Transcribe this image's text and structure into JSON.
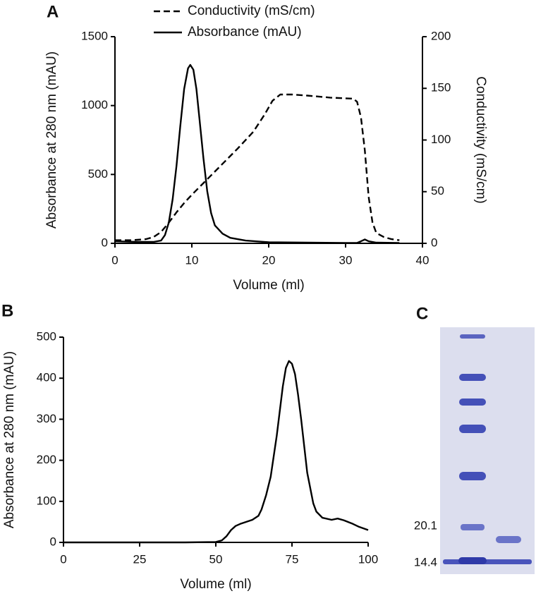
{
  "chart_data": [
    {
      "type": "line",
      "panel_label": "A",
      "xlabel": "Volume (ml)",
      "ylabel": "Absorbance at 280 nm (mAU)",
      "y2label": "Conductivity (mS/cm)",
      "xlim": [
        0,
        40
      ],
      "xticks": [
        0,
        10,
        20,
        30,
        40
      ],
      "ylim": [
        0,
        1500
      ],
      "yticks": [
        0,
        500,
        1000,
        1500
      ],
      "y2lim": [
        0,
        200
      ],
      "y2ticks": [
        0,
        50,
        100,
        150,
        200
      ],
      "legend": "top",
      "series": [
        {
          "name": "Conductivity (mS/cm)",
          "color": "#000000",
          "dash": "dashed",
          "axis": "y2",
          "x": [
            0,
            2,
            4,
            5,
            6,
            7,
            8,
            9,
            10,
            12,
            14,
            16,
            18,
            19.5,
            20.5,
            21.5,
            23,
            25,
            28,
            31,
            31.5,
            32,
            32.5,
            33,
            33.5,
            34,
            35,
            36,
            37
          ],
          "values": [
            3,
            3,
            4,
            6,
            11,
            20,
            30,
            39,
            47,
            62,
            77,
            92,
            108,
            125,
            138,
            144,
            144,
            143,
            141,
            140,
            137,
            122,
            90,
            45,
            20,
            10,
            6,
            4,
            3
          ]
        },
        {
          "name": "Absorbance (mAU)",
          "color": "#000000",
          "dash": "solid",
          "x": [
            0,
            2,
            4,
            5,
            6,
            6.5,
            7,
            7.5,
            8,
            8.5,
            9,
            9.5,
            9.8,
            10.2,
            10.6,
            11,
            11.5,
            12,
            12.5,
            13,
            14,
            15,
            17,
            20,
            25,
            30,
            31.5,
            32,
            32.5,
            33,
            34,
            37
          ],
          "values": [
            15,
            12,
            10,
            10,
            20,
            60,
            150,
            320,
            560,
            850,
            1120,
            1270,
            1295,
            1260,
            1120,
            900,
            620,
            380,
            220,
            130,
            70,
            40,
            20,
            8,
            5,
            3,
            3,
            15,
            28,
            15,
            5,
            3
          ]
        }
      ]
    },
    {
      "type": "line",
      "panel_label": "B",
      "xlabel": "Volume (ml)",
      "ylabel": "Absorbance at 280 nm (mAU)",
      "xlim": [
        0,
        100
      ],
      "xticks": [
        0,
        25,
        50,
        75,
        100
      ],
      "ylim": [
        0,
        500
      ],
      "yticks": [
        0,
        100,
        200,
        300,
        400,
        500
      ],
      "color": "#000000",
      "x": [
        0,
        20,
        40,
        50,
        52,
        53.5,
        55,
        56.5,
        58,
        60,
        62,
        64,
        65,
        66.5,
        68,
        70,
        72,
        73,
        74,
        75,
        76,
        77,
        78,
        80,
        82,
        83,
        85,
        88,
        90,
        92,
        95,
        97,
        100
      ],
      "values": [
        0,
        0,
        0,
        1,
        5,
        15,
        30,
        40,
        45,
        50,
        55,
        65,
        80,
        115,
        160,
        260,
        380,
        425,
        442,
        435,
        410,
        360,
        300,
        170,
        95,
        75,
        60,
        55,
        58,
        54,
        45,
        38,
        30
      ]
    }
  ],
  "gel": {
    "panel_label": "C",
    "markers": [
      "20.1",
      "14.4"
    ]
  }
}
